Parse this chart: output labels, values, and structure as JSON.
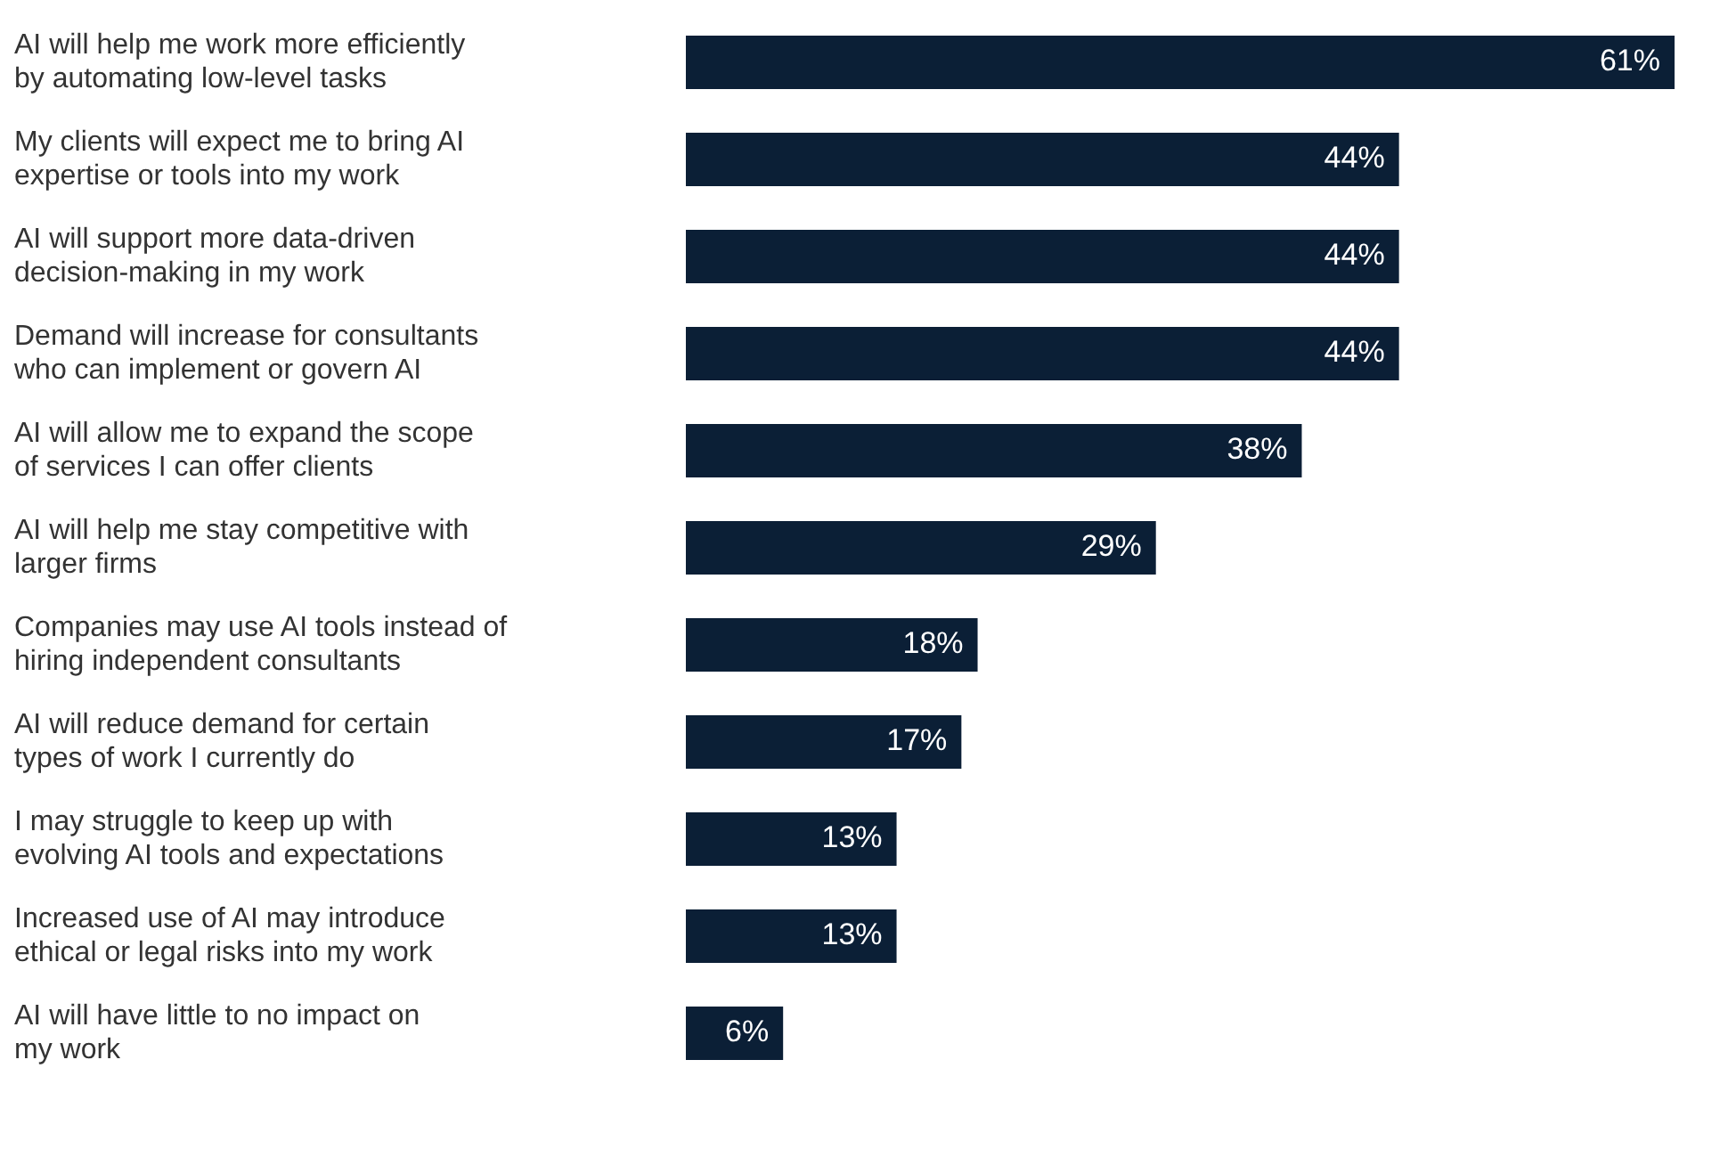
{
  "chart_data": {
    "type": "bar",
    "orientation": "horizontal",
    "categories": [
      "AI will help me work more efficiently by automating low-level tasks",
      "My clients will expect me to bring AI expertise or tools into my work",
      "AI will support more data-driven decision-making in my work",
      "Demand will increase for consultants who can implement or govern AI",
      "AI will allow me to expand the scope of services I can offer clients",
      "AI will help me stay competitive with larger firms",
      "Companies may use AI tools instead of hiring independent consultants",
      "AI will reduce demand for certain types of work I currently do",
      "I may struggle to keep up with evolving AI tools and expectations",
      "Increased use of AI may introduce ethical or legal risks into my work",
      "AI will have little to no impact on my work"
    ],
    "values": [
      61,
      44,
      44,
      44,
      38,
      29,
      18,
      17,
      13,
      13,
      6
    ],
    "value_labels": [
      "61%",
      "44%",
      "44%",
      "44%",
      "38%",
      "29%",
      "18%",
      "17%",
      "13%",
      "13%",
      "6%"
    ],
    "color": "#0b1f36"
  }
}
